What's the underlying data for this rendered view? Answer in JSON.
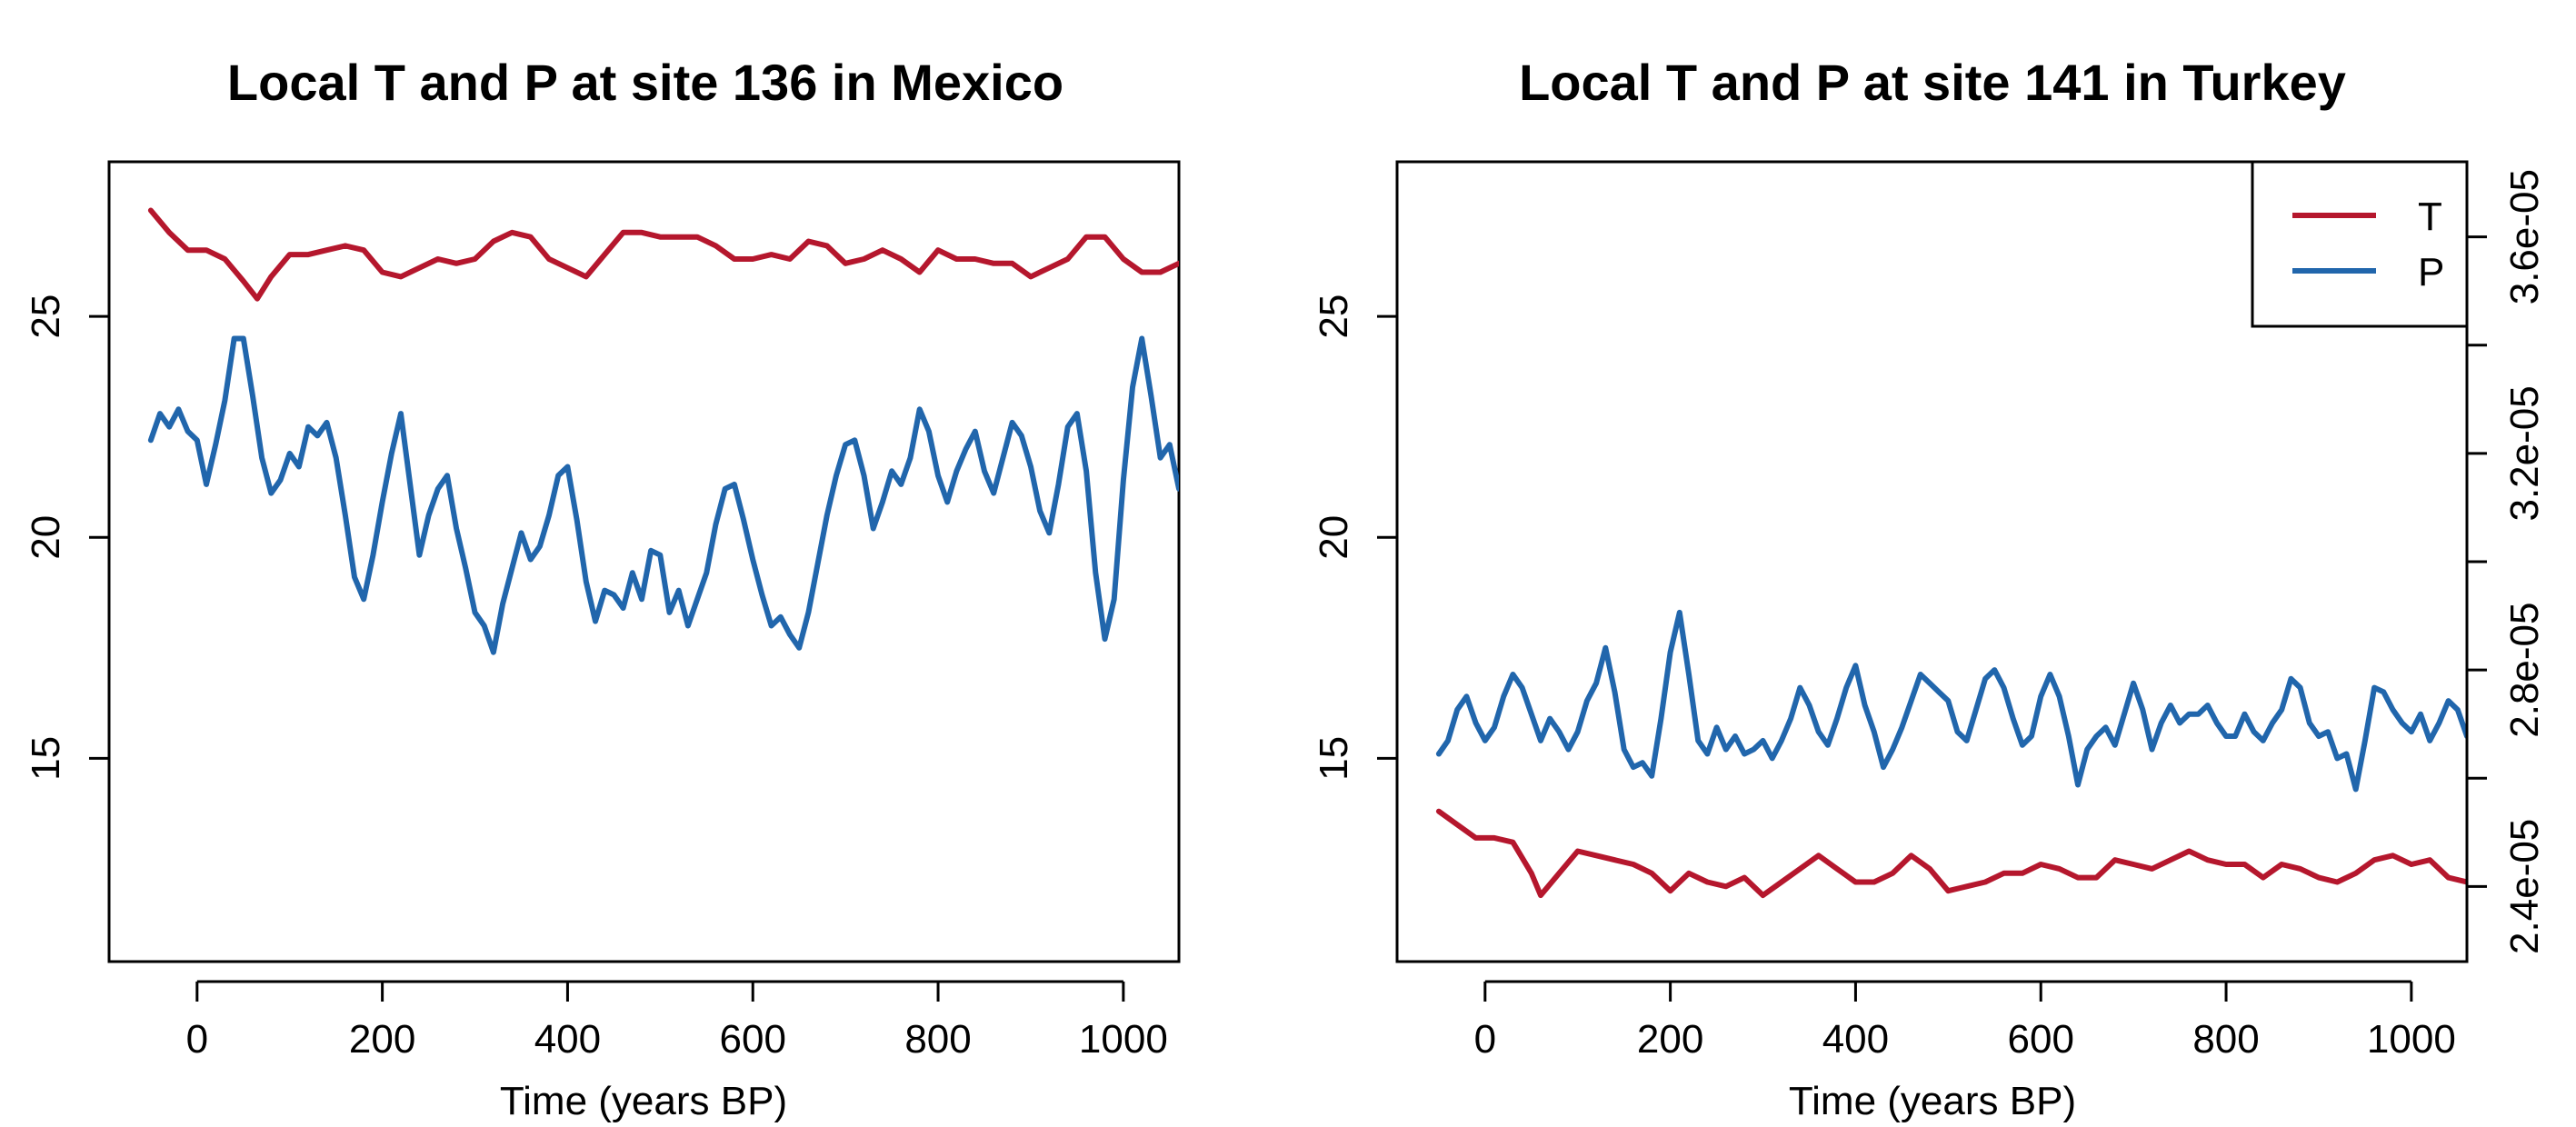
{
  "colors": {
    "T": "#b5172d",
    "P": "#2166ac"
  },
  "chart_data": [
    {
      "type": "line",
      "title": "Local T and P at site 136 in Mexico",
      "xlabel": "Time (years BP)",
      "ylabel": "",
      "xlim": [
        -95,
        1060
      ],
      "ylim": [
        10.4,
        28.5
      ],
      "x_ticks": [
        0,
        200,
        400,
        600,
        800,
        1000
      ],
      "y_ticks": [
        15,
        20,
        25
      ],
      "series": [
        {
          "name": "T",
          "color": "#b5172d",
          "x": [
            -50,
            -30,
            -10,
            10,
            30,
            50,
            65,
            80,
            100,
            120,
            140,
            160,
            180,
            200,
            220,
            240,
            260,
            280,
            300,
            320,
            340,
            360,
            380,
            400,
            420,
            440,
            460,
            480,
            500,
            520,
            540,
            560,
            580,
            600,
            620,
            640,
            660,
            680,
            700,
            720,
            740,
            760,
            780,
            800,
            820,
            840,
            860,
            880,
            900,
            920,
            940,
            960,
            980,
            1000,
            1020,
            1040,
            1060
          ],
          "y": [
            27.4,
            26.9,
            26.5,
            26.5,
            26.3,
            25.8,
            25.4,
            25.9,
            26.4,
            26.4,
            26.5,
            26.6,
            26.5,
            26.0,
            25.9,
            26.1,
            26.3,
            26.2,
            26.3,
            26.7,
            26.9,
            26.8,
            26.3,
            26.1,
            25.9,
            26.4,
            26.9,
            26.9,
            26.8,
            26.8,
            26.8,
            26.6,
            26.3,
            26.3,
            26.4,
            26.3,
            26.7,
            26.6,
            26.2,
            26.3,
            26.5,
            26.3,
            26.0,
            26.5,
            26.3,
            26.3,
            26.2,
            26.2,
            25.9,
            26.1,
            26.3,
            26.8,
            26.8,
            26.3,
            26.0,
            26.0,
            26.2
          ]
        },
        {
          "name": "P",
          "color": "#2166ac",
          "x": [
            -50,
            -40,
            -30,
            -20,
            -10,
            0,
            10,
            20,
            30,
            40,
            50,
            60,
            70,
            80,
            90,
            100,
            110,
            120,
            130,
            140,
            150,
            160,
            170,
            180,
            190,
            200,
            210,
            220,
            230,
            240,
            250,
            260,
            270,
            280,
            290,
            300,
            310,
            320,
            330,
            340,
            350,
            360,
            370,
            380,
            390,
            400,
            410,
            420,
            430,
            440,
            450,
            460,
            470,
            480,
            490,
            500,
            510,
            520,
            530,
            540,
            550,
            560,
            570,
            580,
            590,
            600,
            610,
            620,
            630,
            640,
            650,
            660,
            670,
            680,
            690,
            700,
            710,
            720,
            730,
            740,
            750,
            760,
            770,
            780,
            790,
            800,
            810,
            820,
            830,
            840,
            850,
            860,
            870,
            880,
            890,
            900,
            910,
            920,
            930,
            940,
            950,
            960,
            970,
            980,
            990,
            1000,
            1010,
            1020,
            1030,
            1040,
            1050,
            1060
          ],
          "y": [
            22.2,
            22.8,
            22.5,
            22.9,
            22.4,
            22.2,
            21.2,
            22.1,
            23.1,
            24.5,
            24.5,
            23.2,
            21.8,
            21.0,
            21.3,
            21.9,
            21.6,
            22.5,
            22.3,
            22.6,
            21.8,
            20.5,
            19.1,
            18.6,
            19.6,
            20.8,
            21.9,
            22.8,
            21.2,
            19.6,
            20.5,
            21.1,
            21.4,
            20.2,
            19.3,
            18.3,
            18.0,
            17.4,
            18.5,
            19.3,
            20.1,
            19.5,
            19.8,
            20.5,
            21.4,
            21.6,
            20.4,
            19.0,
            18.1,
            18.8,
            18.7,
            18.4,
            19.2,
            18.6,
            19.7,
            19.6,
            18.3,
            18.8,
            18.0,
            18.6,
            19.2,
            20.3,
            21.1,
            21.2,
            20.4,
            19.5,
            18.7,
            18.0,
            18.2,
            17.8,
            17.5,
            18.3,
            19.4,
            20.5,
            21.4,
            22.1,
            22.2,
            21.4,
            20.2,
            20.8,
            21.5,
            21.2,
            21.8,
            22.9,
            22.4,
            21.4,
            20.8,
            21.5,
            22.0,
            22.4,
            21.5,
            21.0,
            21.8,
            22.6,
            22.3,
            21.6,
            20.6,
            20.1,
            21.2,
            22.5,
            22.8,
            21.5,
            19.2,
            17.7,
            18.6,
            21.3,
            23.4,
            24.5,
            23.2,
            21.8,
            22.1,
            21.1
          ]
        }
      ]
    },
    {
      "type": "line",
      "title": "Local T and P at site 141 in Turkey",
      "xlabel": "Time (years BP)",
      "ylabel": "",
      "xlim": [
        -95,
        1060
      ],
      "ylim": [
        10.4,
        28.5
      ],
      "x_ticks": [
        0,
        200,
        400,
        600,
        800,
        1000
      ],
      "y_ticks": [
        15,
        20,
        25
      ],
      "right_axis": {
        "ticks": [
          "2.4e-05",
          "2.8e-05",
          "3.2e-05",
          "3.6e-05"
        ],
        "left_axis_positions": [
          12.1,
          17.0,
          21.9,
          26.8
        ],
        "minor_left_axis_positions": [
          14.55,
          19.45,
          24.35
        ]
      },
      "legend": {
        "position": "top-right",
        "entries": [
          "T",
          "P"
        ]
      },
      "series": [
        {
          "name": "T",
          "color": "#b5172d",
          "x": [
            -50,
            -30,
            -10,
            10,
            30,
            50,
            60,
            80,
            100,
            120,
            140,
            160,
            180,
            200,
            220,
            240,
            260,
            280,
            300,
            320,
            340,
            360,
            380,
            400,
            420,
            440,
            460,
            480,
            500,
            520,
            540,
            560,
            580,
            600,
            620,
            640,
            660,
            680,
            700,
            720,
            740,
            760,
            780,
            800,
            820,
            840,
            860,
            880,
            900,
            920,
            940,
            960,
            980,
            1000,
            1020,
            1040,
            1060
          ],
          "y": [
            13.8,
            13.5,
            13.2,
            13.2,
            13.1,
            12.4,
            11.9,
            12.4,
            12.9,
            12.8,
            12.7,
            12.6,
            12.4,
            12.0,
            12.4,
            12.2,
            12.1,
            12.3,
            11.9,
            12.2,
            12.5,
            12.8,
            12.5,
            12.2,
            12.2,
            12.4,
            12.8,
            12.5,
            12.0,
            12.1,
            12.2,
            12.4,
            12.4,
            12.6,
            12.5,
            12.3,
            12.3,
            12.7,
            12.6,
            12.5,
            12.7,
            12.9,
            12.7,
            12.6,
            12.6,
            12.3,
            12.6,
            12.5,
            12.3,
            12.2,
            12.4,
            12.7,
            12.8,
            12.6,
            12.7,
            12.3,
            12.2
          ]
        },
        {
          "name": "P",
          "color": "#2166ac",
          "x": [
            -50,
            -40,
            -30,
            -20,
            -10,
            0,
            10,
            20,
            30,
            40,
            50,
            60,
            70,
            80,
            90,
            100,
            110,
            120,
            130,
            140,
            150,
            160,
            170,
            180,
            190,
            200,
            210,
            220,
            230,
            240,
            250,
            260,
            270,
            280,
            290,
            300,
            310,
            320,
            330,
            340,
            350,
            360,
            370,
            380,
            390,
            400,
            410,
            420,
            430,
            440,
            450,
            460,
            470,
            480,
            490,
            500,
            510,
            520,
            530,
            540,
            550,
            560,
            570,
            580,
            590,
            600,
            610,
            620,
            630,
            640,
            650,
            660,
            670,
            680,
            690,
            700,
            710,
            720,
            730,
            740,
            750,
            760,
            770,
            780,
            790,
            800,
            810,
            820,
            830,
            840,
            850,
            860,
            870,
            880,
            890,
            900,
            910,
            920,
            930,
            940,
            950,
            960,
            970,
            980,
            990,
            1000,
            1010,
            1020,
            1030,
            1040,
            1050,
            1060
          ],
          "y": [
            15.1,
            15.4,
            16.1,
            16.4,
            15.8,
            15.4,
            15.7,
            16.4,
            16.9,
            16.6,
            16.0,
            15.4,
            15.9,
            15.6,
            15.2,
            15.6,
            16.3,
            16.7,
            17.5,
            16.5,
            15.2,
            14.8,
            14.9,
            14.6,
            15.9,
            17.4,
            18.3,
            16.9,
            15.4,
            15.1,
            15.7,
            15.2,
            15.5,
            15.1,
            15.2,
            15.4,
            15.0,
            15.4,
            15.9,
            16.6,
            16.2,
            15.6,
            15.3,
            15.9,
            16.6,
            17.1,
            16.2,
            15.6,
            14.8,
            15.2,
            15.7,
            16.3,
            16.9,
            16.7,
            16.5,
            16.3,
            15.6,
            15.4,
            16.1,
            16.8,
            17.0,
            16.6,
            15.9,
            15.3,
            15.5,
            16.4,
            16.9,
            16.4,
            15.5,
            14.4,
            15.2,
            15.5,
            15.7,
            15.3,
            16.0,
            16.7,
            16.1,
            15.2,
            15.8,
            16.2,
            15.8,
            16.0,
            16.0,
            16.2,
            15.8,
            15.5,
            15.5,
            16.0,
            15.6,
            15.4,
            15.8,
            16.1,
            16.8,
            16.6,
            15.8,
            15.5,
            15.6,
            15.0,
            15.1,
            14.3,
            15.4,
            16.6,
            16.5,
            16.1,
            15.8,
            15.6,
            16.0,
            15.4,
            15.8,
            16.3,
            16.1,
            15.5
          ]
        }
      ]
    }
  ]
}
